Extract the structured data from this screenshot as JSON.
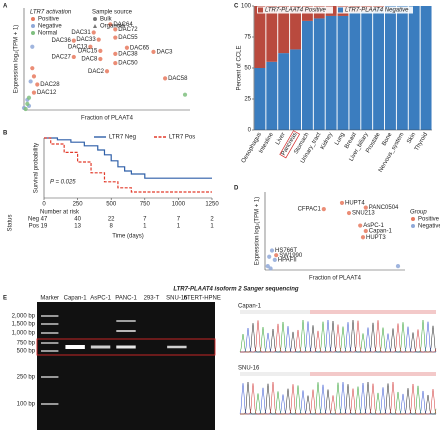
{
  "chart_data": [
    {
      "type": "scatter",
      "panel": "A",
      "xlabel": "Fraction of PLAAT4",
      "ylabel": "Expression log₂(TPM + 1)",
      "xlim": [
        0,
        1
      ],
      "ylim": [
        0,
        10
      ],
      "legend_title": "LTR7 activation",
      "series": [
        {
          "name": "Positive",
          "color": "#e8795e",
          "x": [
            0.42,
            0.52,
            0.55,
            0.55,
            0.3,
            0.45,
            0.4,
            0.62,
            0.78,
            0.46,
            0.55,
            0.3,
            0.46,
            0.55,
            0.5,
            0.85,
            0.08,
            0.06,
            0.05,
            0.06
          ],
          "values": [
            7.6,
            8.4,
            7.9,
            7.1,
            6.8,
            6.9,
            6.2,
            6.1,
            5.7,
            5.8,
            5.5,
            5.2,
            5.0,
            4.6,
            3.8,
            3.1,
            2.5,
            1.7,
            4.1,
            3.3
          ],
          "point_labels": [
            "DAC31",
            "DAC64",
            "DAC72",
            "DAC55",
            "DAC36",
            "DAC33",
            "DAC13",
            "DAC65",
            "DAC3",
            "DAC15",
            "DAC38",
            "DAC27",
            "DAC8",
            "DAC50",
            "DAC2",
            "DAC58",
            "DAC28",
            "DAC12",
            null,
            null
          ]
        },
        {
          "name": "Negative",
          "color": "#8fa8d8",
          "x": [
            0.05,
            0.04,
            0.02,
            0.03,
            0.0
          ],
          "values": [
            6.2,
            2.8,
            1.0,
            0.4,
            0.2
          ],
          "point_labels": [
            null,
            null,
            null,
            null,
            null
          ]
        },
        {
          "name": "Normal",
          "color": "#7fbf7f",
          "x": [
            0.03,
            0.02,
            0.97,
            0.01
          ],
          "values": [
            1.2,
            0.6,
            1.5,
            0.1
          ],
          "point_labels": [
            null,
            null,
            null,
            null
          ]
        }
      ],
      "shape_legend": {
        "title": "Sample source",
        "items": [
          "Bulk",
          "Organoid"
        ]
      }
    },
    {
      "type": "km",
      "panel": "B",
      "xlabel": "Time (days)",
      "ylabel": "Survival probability",
      "xlim": [
        0,
        1250
      ],
      "ylim": [
        0,
        1
      ],
      "xticks": [
        0,
        250,
        500,
        750,
        1000,
        1250
      ],
      "annotation": "P = 0.025",
      "series": [
        {
          "name": "LTR7 Neg",
          "color": "#2e5fa8",
          "x": [
            0,
            100,
            200,
            300,
            400,
            450,
            500,
            550,
            600,
            650,
            750,
            1250
          ],
          "values": [
            1,
            0.97,
            0.93,
            0.87,
            0.8,
            0.72,
            0.62,
            0.52,
            0.45,
            0.4,
            0.33,
            0.33
          ]
        },
        {
          "name": "LTR7 Pos",
          "color": "#e23b2b",
          "dashed": true,
          "x": [
            0,
            50,
            150,
            250,
            350,
            450,
            550,
            650,
            1250
          ],
          "values": [
            1,
            0.9,
            0.76,
            0.6,
            0.42,
            0.27,
            0.17,
            0.1,
            0.1
          ]
        }
      ],
      "risk_table": {
        "title": "Number at risk",
        "row_title": "Status",
        "rows": [
          {
            "name": "Neg",
            "values": [
              47,
              40,
              22,
              7,
              7,
              2
            ]
          },
          {
            "name": "Pos",
            "values": [
              19,
              13,
              8,
              1,
              1,
              1
            ]
          }
        ]
      }
    },
    {
      "type": "stacked_bar",
      "panel": "C",
      "ylabel": "Percent of CCLE",
      "ylim": [
        0,
        100
      ],
      "yticks": [
        0,
        25,
        50,
        75,
        100
      ],
      "categories": [
        "Oesophagus",
        "Intestine",
        "Liver",
        "Pancreas",
        "Stomach",
        "Urinary_tract",
        "Kidney",
        "Lung",
        "Breast",
        "Liver_biliary",
        "Prostate",
        "Bone",
        "Nervous_system",
        "Skin",
        "Thyroid"
      ],
      "highlight_index": 3,
      "series": [
        {
          "name": "LTR7-PLAAT4 Positive",
          "color": "#b94a3e",
          "values": [
            50,
            45,
            38,
            35,
            12,
            10,
            8,
            8,
            5,
            4,
            2,
            0,
            0,
            0,
            0
          ]
        },
        {
          "name": "LTR7-PLAAT4 Negative",
          "color": "#3b7dbf",
          "values": [
            50,
            55,
            62,
            65,
            88,
            90,
            92,
            92,
            95,
            96,
            98,
            100,
            100,
            100,
            100
          ]
        }
      ]
    },
    {
      "type": "scatter",
      "panel": "D",
      "xlabel": "Fraction of PLAAT4",
      "ylabel": "Expression log₂(TPM + 1)",
      "xlim": [
        0,
        1
      ],
      "ylim": [
        0,
        10
      ],
      "legend_title": "Group",
      "series": [
        {
          "name": "Positive",
          "color": "#e8795e",
          "x": [
            0.55,
            0.72,
            0.42,
            0.6,
            0.68,
            0.72,
            0.7,
            0.08
          ],
          "values": [
            8.6,
            8.0,
            7.8,
            7.3,
            5.7,
            5.0,
            4.2,
            1.9
          ],
          "point_labels": [
            "HUPT4",
            "PANC0504",
            "CFPAC1",
            "SNU213",
            "AsPC-1",
            "Capan-1",
            "HUPT3",
            "SW1990"
          ]
        },
        {
          "name": "Negative",
          "color": "#8fa8d8",
          "x": [
            0.05,
            0.07,
            0.02,
            0.04,
            0.95,
            0.03
          ],
          "values": [
            2.5,
            1.3,
            0.5,
            0.2,
            0.5,
            1.7
          ],
          "point_labels": [
            "HS766T",
            "HPAFII",
            null,
            null,
            null,
            null
          ]
        }
      ]
    }
  ],
  "gel_figure": {
    "panel": "E",
    "title": "LTR7-PLAAT4 isoform 2 Sanger sequencing",
    "lanes": [
      "Marker",
      "Capan-1",
      "AsPC-1",
      "PANC-1",
      "293-T",
      "SNU-16",
      "hTERT-HPNE"
    ],
    "ladder": [
      "2,000 bp",
      "1,500 bp",
      "1,000 bp",
      "750 bp",
      "500 bp",
      "250 bp",
      "100 bp"
    ],
    "traces": [
      "Capan-1",
      "SNU-16"
    ]
  }
}
